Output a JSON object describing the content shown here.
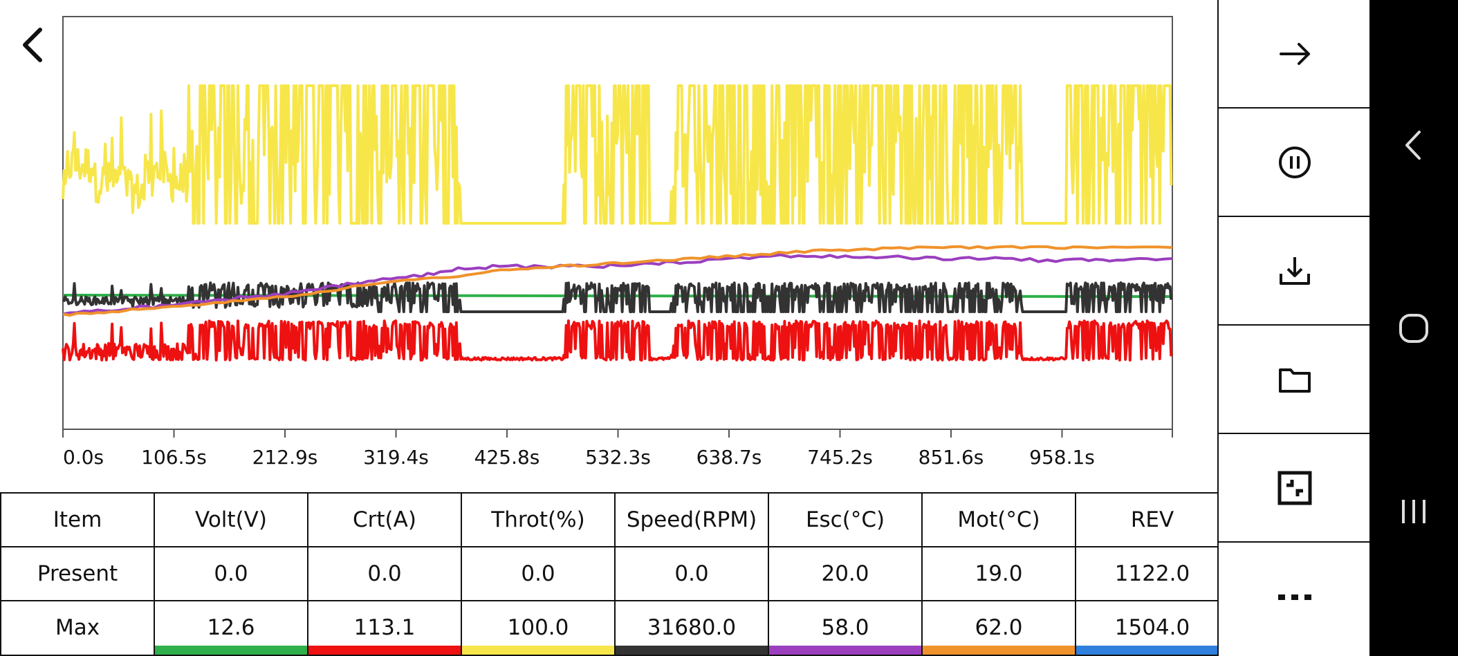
{
  "chart_data": {
    "type": "line",
    "xlabel": "",
    "ylabel": "",
    "x_unit": "s",
    "x_ticks": [
      "0.0s",
      "106.5s",
      "212.9s",
      "319.4s",
      "425.8s",
      "532.3s",
      "638.7s",
      "745.2s",
      "851.6s",
      "958.1s"
    ],
    "xlim": [
      0,
      1067
    ],
    "grid": false,
    "legend": "none (colors keyed in the table swatch row)",
    "series": [
      {
        "name": "Throt(%)",
        "color": "#f7e64a",
        "baseline": 0,
        "peak": 100,
        "segments": [
          [
            0,
            2
          ],
          [
            4,
            45
          ],
          [
            30,
            40
          ],
          [
            60,
            20
          ],
          [
            80,
            25
          ],
          [
            90,
            45
          ],
          [
            100,
            30
          ],
          [
            120,
            30
          ],
          [
            130,
            52
          ],
          [
            160,
            55
          ],
          [
            170,
            40
          ],
          [
            175,
            12
          ],
          [
            180,
            100
          ],
          [
            195,
            100
          ],
          [
            210,
            100
          ],
          [
            225,
            100
          ],
          [
            240,
            100
          ],
          [
            270,
            100
          ],
          [
            295,
            20
          ],
          [
            305,
            52
          ],
          [
            320,
            100
          ],
          [
            340,
            100
          ],
          [
            355,
            100
          ],
          [
            370,
            100
          ],
          [
            382,
            0
          ],
          [
            480,
            0
          ],
          [
            490,
            100
          ],
          [
            510,
            100
          ],
          [
            525,
            100
          ],
          [
            540,
            100
          ],
          [
            560,
            100
          ],
          [
            565,
            0
          ],
          [
            585,
            0
          ],
          [
            590,
            100
          ],
          [
            605,
            100
          ],
          [
            620,
            100
          ],
          [
            645,
            100
          ],
          [
            660,
            80
          ],
          [
            680,
            80
          ],
          [
            700,
            100
          ],
          [
            720,
            40
          ],
          [
            735,
            50
          ],
          [
            750,
            100
          ],
          [
            775,
            100
          ],
          [
            800,
            100
          ],
          [
            825,
            100
          ],
          [
            860,
            100
          ],
          [
            880,
            100
          ],
          [
            890,
            100
          ],
          [
            925,
            0
          ],
          [
            965,
            0
          ],
          [
            980,
            100
          ],
          [
            1000,
            100
          ],
          [
            1015,
            100
          ],
          [
            1035,
            0
          ],
          [
            1050,
            100
          ],
          [
            1067,
            0
          ]
        ]
      },
      {
        "name": "Esc(°C)",
        "color": "#9b3fbf",
        "points": [
          [
            0,
            20
          ],
          [
            40,
            22
          ],
          [
            80,
            24
          ],
          [
            120,
            26
          ],
          [
            170,
            30
          ],
          [
            220,
            33
          ],
          [
            260,
            37
          ],
          [
            300,
            41
          ],
          [
            345,
            44
          ],
          [
            380,
            48
          ],
          [
            420,
            50
          ],
          [
            470,
            50
          ],
          [
            520,
            50
          ],
          [
            560,
            52
          ],
          [
            600,
            53
          ],
          [
            640,
            55
          ],
          [
            700,
            57
          ],
          [
            745,
            56
          ],
          [
            790,
            56
          ],
          [
            830,
            55
          ],
          [
            880,
            55
          ],
          [
            930,
            54
          ],
          [
            980,
            54
          ],
          [
            1020,
            54
          ],
          [
            1067,
            55
          ]
        ]
      },
      {
        "name": "Mot(°C)",
        "color": "#f0922b",
        "points": [
          [
            0,
            19
          ],
          [
            40,
            21
          ],
          [
            80,
            23
          ],
          [
            130,
            26
          ],
          [
            180,
            29
          ],
          [
            230,
            32
          ],
          [
            280,
            37
          ],
          [
            330,
            41
          ],
          [
            380,
            44
          ],
          [
            430,
            48
          ],
          [
            480,
            50
          ],
          [
            530,
            52
          ],
          [
            580,
            54
          ],
          [
            630,
            56
          ],
          [
            680,
            58
          ],
          [
            730,
            60
          ],
          [
            780,
            61
          ],
          [
            830,
            62
          ],
          [
            880,
            62
          ],
          [
            930,
            62
          ],
          [
            980,
            62
          ],
          [
            1067,
            62
          ]
        ]
      },
      {
        "name": "Volt(V)",
        "color": "#2fb04a",
        "points": [
          [
            0,
            12.6
          ],
          [
            200,
            12.5
          ],
          [
            400,
            12.4
          ],
          [
            600,
            12.3
          ],
          [
            800,
            12.2
          ],
          [
            1000,
            12.1
          ],
          [
            1067,
            12.1
          ]
        ]
      },
      {
        "name": "Speed(RPM)",
        "color": "#333333",
        "baseline": 0,
        "peak": 31680,
        "segments": "correlated with Throt(%)"
      },
      {
        "name": "Crt(A)",
        "color": "#ee1111",
        "baseline": 0,
        "peak": 113.1,
        "segments": "correlated with Throt(%)"
      },
      {
        "name": "REV",
        "color": "#2f7fdc",
        "points": []
      }
    ]
  },
  "table": {
    "headers": [
      "Item",
      "Volt(V)",
      "Crt(A)",
      "Throt(%)",
      "Speed(RPM)",
      "Esc(°C)",
      "Mot(°C)",
      "REV"
    ],
    "rows": [
      {
        "label": "Present",
        "values": [
          "0.0",
          "0.0",
          "0.0",
          "0.0",
          "20.0",
          "19.0",
          "1122.0"
        ]
      },
      {
        "label": "Max",
        "values": [
          "12.6",
          "113.1",
          "100.0",
          "31680.0",
          "58.0",
          "62.0",
          "1504.0"
        ]
      }
    ],
    "swatch_colors": [
      "#2fb04a",
      "#ee1111",
      "#f7e64a",
      "#333333",
      "#9b3fbf",
      "#f0922b",
      "#2f7fdc"
    ]
  },
  "toolbar": {
    "items": [
      {
        "name": "forward-arrow-icon"
      },
      {
        "name": "pause-icon"
      },
      {
        "name": "download-icon"
      },
      {
        "name": "folder-icon"
      },
      {
        "name": "fit-screen-icon"
      },
      {
        "name": "more-icon"
      }
    ]
  },
  "nav": {
    "items": [
      "back-icon",
      "home-icon",
      "recents-icon"
    ]
  }
}
